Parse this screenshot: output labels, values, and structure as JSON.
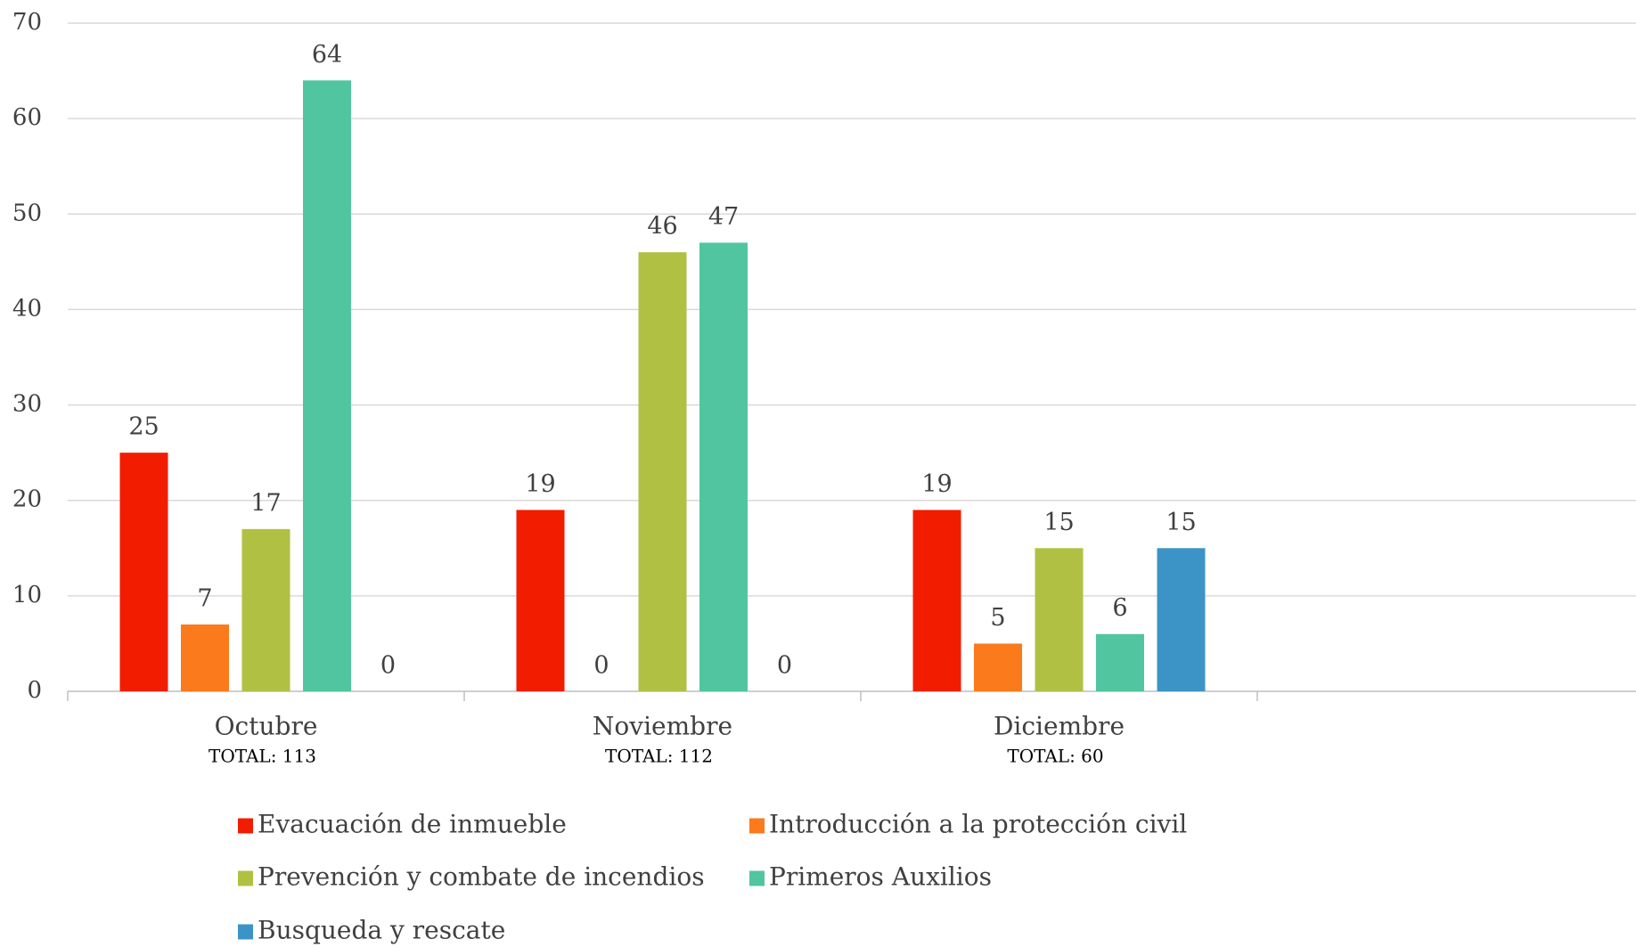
{
  "chart_data": {
    "type": "bar",
    "categories": [
      "Octubre",
      "Noviembre",
      "Diciembre"
    ],
    "annotations": [
      "TOTAL: 113",
      "TOTAL: 112",
      "TOTAL: 60"
    ],
    "series": [
      {
        "name": "Evacuación de inmueble",
        "color": "#f21c00",
        "values": [
          25,
          19,
          19
        ]
      },
      {
        "name": "Introducción a la protección civil",
        "color": "#fb7a1c",
        "values": [
          7,
          0,
          5
        ]
      },
      {
        "name": "Prevención y combate de incendios",
        "color": "#b0c043",
        "values": [
          17,
          46,
          15
        ]
      },
      {
        "name": "Primeros Auxilios",
        "color": "#50c5a0",
        "values": [
          64,
          47,
          6
        ]
      },
      {
        "name": "Busqueda y rescate",
        "color": "#3c94c6",
        "values": [
          0,
          0,
          15
        ]
      }
    ],
    "ylim": [
      0,
      70
    ],
    "yticks": [
      0,
      10,
      20,
      30,
      40,
      50,
      60,
      70
    ],
    "grid": true,
    "legend": "bottom"
  }
}
